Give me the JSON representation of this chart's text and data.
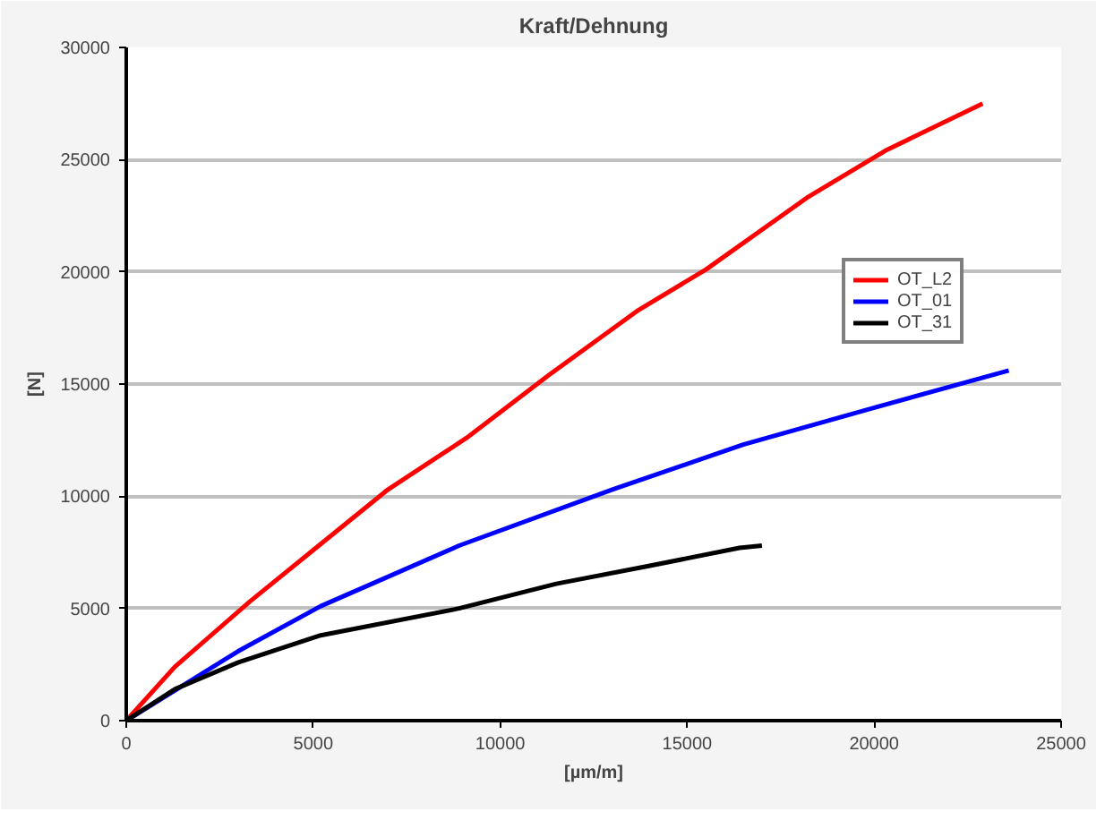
{
  "chart_data": {
    "type": "line",
    "title": "Kraft/Dehnung",
    "xlabel": "[µm/m]",
    "ylabel": "[N]",
    "xlim": [
      0,
      25000
    ],
    "xticks": [
      0,
      5000,
      10000,
      15000,
      20000,
      25000
    ],
    "ylim": [
      0,
      30000
    ],
    "yticks": [
      0,
      5000,
      10000,
      15000,
      20000,
      25000,
      30000
    ],
    "grid": "y",
    "legend": "right",
    "marker": "none",
    "line_style": "solid",
    "series": [
      {
        "name": "OT_L2",
        "color": "#ff0000",
        "x": [
          0,
          1300,
          3300,
          5000,
          7000,
          9100,
          11300,
          13700,
          15500,
          18200,
          20300,
          22900
        ],
        "values": [
          0,
          2400,
          5300,
          7600,
          10300,
          12600,
          15400,
          18300,
          20100,
          23300,
          25400,
          27500
        ]
      },
      {
        "name": "OT_01",
        "color": "#0000ff",
        "x": [
          0,
          3000,
          5200,
          8900,
          13000,
          16500,
          19900,
          23600
        ],
        "values": [
          0,
          3100,
          5100,
          7800,
          10300,
          12300,
          13900,
          15600
        ]
      },
      {
        "name": "OT_31",
        "color": "#000000",
        "x": [
          0,
          1300,
          3000,
          5200,
          8900,
          11500,
          14000,
          16400,
          17000
        ],
        "values": [
          0,
          1400,
          2600,
          3800,
          5000,
          6100,
          6900,
          7700,
          7800
        ]
      }
    ]
  }
}
